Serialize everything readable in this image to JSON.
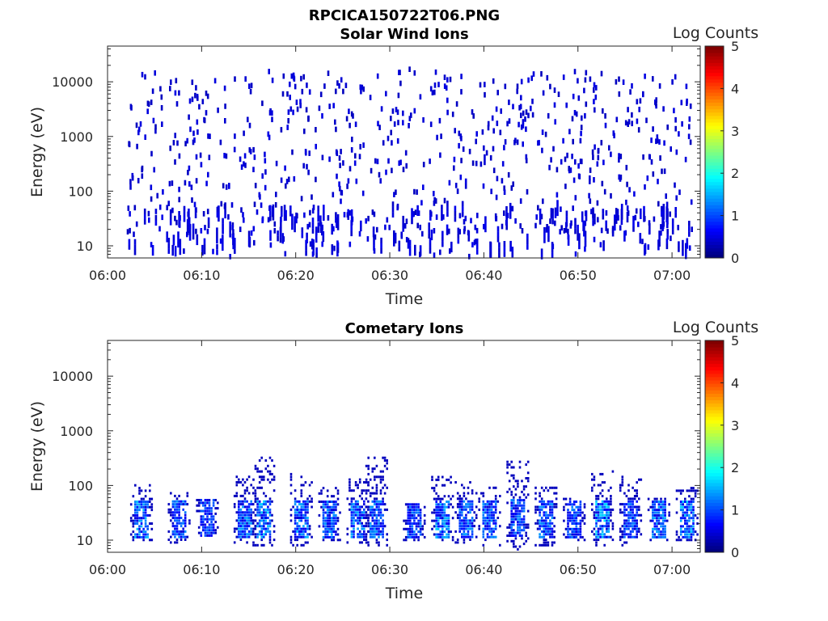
{
  "figure": {
    "title": "RPCICA150722T06.PNG"
  },
  "colorbar": {
    "label": "Log Counts",
    "ticks": [
      "0",
      "1",
      "2",
      "3",
      "4",
      "5"
    ],
    "range": [
      0,
      5
    ],
    "colormap": "jet"
  },
  "chart_data": [
    {
      "type": "heatmap",
      "title": "Solar Wind Ions",
      "xlabel": "Time",
      "ylabel": "Energy (eV)",
      "yscale": "log",
      "ylim": [
        6,
        45000
      ],
      "xlim": [
        "06:00",
        "07:03"
      ],
      "xticks": [
        "06:00",
        "06:10",
        "06:20",
        "06:30",
        "06:40",
        "06:50",
        "07:00"
      ],
      "yticks": [
        "10",
        "100",
        "1000",
        "10000"
      ],
      "color_range": [
        0,
        5
      ],
      "description_of_values": "sparse counts, log counts mostly ~0.3, scattered from ~6 eV up to ~17000 eV across the full interval",
      "approximate_data_interval": [
        "06:02",
        "07:02"
      ],
      "samples": [
        {
          "time": "06:03",
          "energy": 25,
          "log_counts": 0.4
        },
        {
          "time": "06:05",
          "energy": 1500,
          "log_counts": 0.3
        },
        {
          "time": "06:08",
          "energy": 8,
          "log_counts": 0.4
        },
        {
          "time": "06:14",
          "energy": 20,
          "log_counts": 0.4
        },
        {
          "time": "06:17",
          "energy": 30,
          "log_counts": 0.4
        },
        {
          "time": "06:24",
          "energy": 9,
          "log_counts": 0.4
        },
        {
          "time": "06:32",
          "energy": 17000,
          "log_counts": 0.3
        },
        {
          "time": "06:39",
          "energy": 12,
          "log_counts": 0.4
        },
        {
          "time": "06:46",
          "energy": 14000,
          "log_counts": 0.3
        },
        {
          "time": "06:52",
          "energy": 30,
          "log_counts": 0.4
        },
        {
          "time": "06:59",
          "energy": 25,
          "log_counts": 0.4
        },
        {
          "time": "07:02",
          "energy": 20,
          "log_counts": 0.4
        }
      ]
    },
    {
      "type": "heatmap",
      "title": "Cometary Ions",
      "xlabel": "Time",
      "ylabel": "Energy (eV)",
      "yscale": "log",
      "ylim": [
        6,
        45000
      ],
      "xlim": [
        "06:00",
        "07:03"
      ],
      "xticks": [
        "06:00",
        "06:10",
        "06:20",
        "06:30",
        "06:40",
        "06:50",
        "07:00"
      ],
      "yticks": [
        "10",
        "100",
        "1000",
        "10000"
      ],
      "color_range": [
        0,
        5
      ],
      "description_of_values": "periodic bursts of ~1–3 min duration roughly every 3–4 min, mostly 10–100 eV, peak log counts ~1.7",
      "approximate_bursts": [
        {
          "time": "06:03.5",
          "energy_range": [
            10,
            110
          ],
          "peak_log_counts": 1.6
        },
        {
          "time": "06:07.5",
          "energy_range": [
            9,
            80
          ],
          "peak_log_counts": 1.4
        },
        {
          "time": "06:10.5",
          "energy_range": [
            12,
            60
          ],
          "peak_log_counts": 1.2
        },
        {
          "time": "06:14.5",
          "energy_range": [
            9,
            150
          ],
          "peak_log_counts": 1.5
        },
        {
          "time": "06:16.5",
          "energy_range": [
            8,
            350
          ],
          "peak_log_counts": 1.7
        },
        {
          "time": "06:20.5",
          "energy_range": [
            8,
            170
          ],
          "peak_log_counts": 1.6
        },
        {
          "time": "06:23.5",
          "energy_range": [
            10,
            90
          ],
          "peak_log_counts": 1.4
        },
        {
          "time": "06:26.5",
          "energy_range": [
            9,
            130
          ],
          "peak_log_counts": 1.5
        },
        {
          "time": "06:28.5",
          "energy_range": [
            8,
            340
          ],
          "peak_log_counts": 1.4
        },
        {
          "time": "06:32.5",
          "energy_range": [
            10,
            50
          ],
          "peak_log_counts": 1.3
        },
        {
          "time": "06:35.5",
          "energy_range": [
            10,
            150
          ],
          "peak_log_counts": 1.7
        },
        {
          "time": "06:38",
          "energy_range": [
            9,
            120
          ],
          "peak_log_counts": 1.5
        },
        {
          "time": "06:40.5",
          "energy_range": [
            8,
            90
          ],
          "peak_log_counts": 1.4
        },
        {
          "time": "06:43.5",
          "energy_range": [
            6,
            300
          ],
          "peak_log_counts": 1.3
        },
        {
          "time": "06:46.5",
          "energy_range": [
            8,
            100
          ],
          "peak_log_counts": 1.4
        },
        {
          "time": "06:49.5",
          "energy_range": [
            10,
            60
          ],
          "peak_log_counts": 1.3
        },
        {
          "time": "06:52.5",
          "energy_range": [
            8,
            200
          ],
          "peak_log_counts": 1.8
        },
        {
          "time": "06:55.5",
          "energy_range": [
            8,
            150
          ],
          "peak_log_counts": 1.3
        },
        {
          "time": "06:58.5",
          "energy_range": [
            10,
            60
          ],
          "peak_log_counts": 1.5
        },
        {
          "time": "07:01.5",
          "energy_range": [
            10,
            90
          ],
          "peak_log_counts": 1.7
        }
      ]
    }
  ]
}
